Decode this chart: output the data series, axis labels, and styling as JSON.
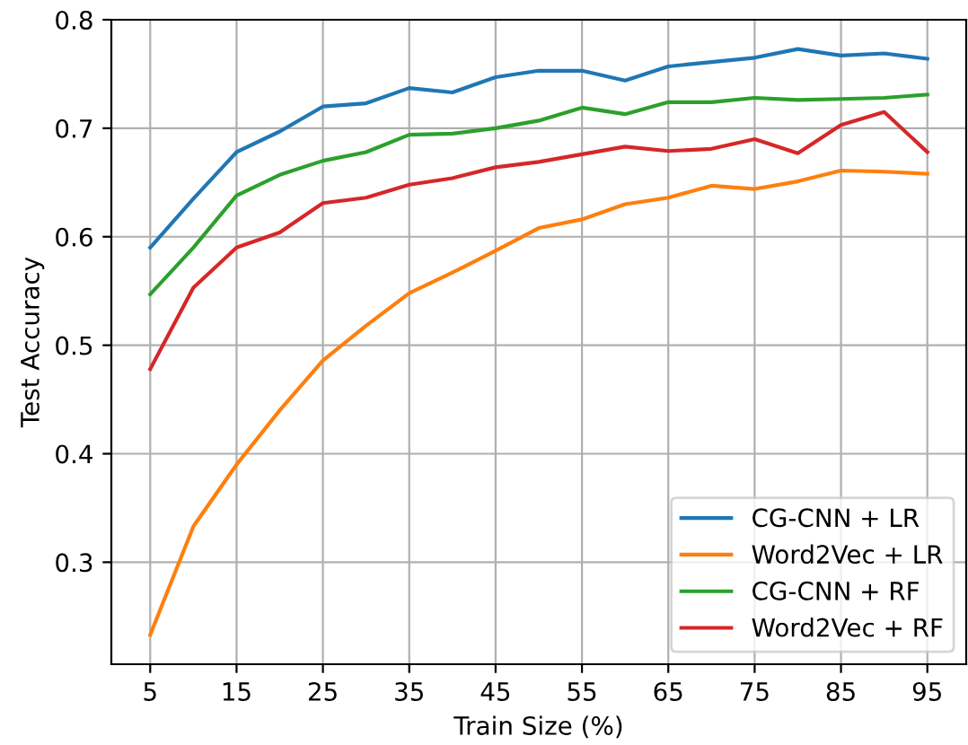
{
  "chart_data": {
    "type": "line",
    "xlabel": "Train Size (%)",
    "ylabel": "Test Accuracy",
    "x": [
      5,
      10,
      15,
      20,
      25,
      30,
      35,
      40,
      45,
      50,
      55,
      60,
      65,
      70,
      75,
      80,
      85,
      90,
      95
    ],
    "xlim": [
      0.5,
      99.5
    ],
    "xticks": [
      5,
      15,
      25,
      35,
      45,
      55,
      65,
      75,
      85,
      95
    ],
    "ylim": [
      0.206,
      0.8
    ],
    "yticks": [
      {
        "value": 0.3,
        "label": "0.3"
      },
      {
        "value": 0.4,
        "label": "0.4"
      },
      {
        "value": 0.5,
        "label": "0.5"
      },
      {
        "value": 0.6,
        "label": "0.6"
      },
      {
        "value": 0.7,
        "label": "0.7"
      },
      {
        "value": 0.8,
        "label": "0.8"
      }
    ],
    "grid": true,
    "legend": "bottom right",
    "marker": "none",
    "line_style": "solid",
    "series": [
      {
        "name": "CG-CNN + LR",
        "color": "#1f77b4",
        "values": [
          0.59,
          0.635,
          0.678,
          0.697,
          0.72,
          0.723,
          0.737,
          0.733,
          0.747,
          0.753,
          0.753,
          0.744,
          0.757,
          0.761,
          0.765,
          0.773,
          0.767,
          0.769,
          0.764
        ]
      },
      {
        "name": "Word2Vec + LR",
        "color": "#ff7f0e",
        "values": [
          0.233,
          0.333,
          0.39,
          0.44,
          0.486,
          0.518,
          0.548,
          0.567,
          0.587,
          0.608,
          0.616,
          0.63,
          0.636,
          0.647,
          0.644,
          0.651,
          0.661,
          0.66,
          0.658
        ]
      },
      {
        "name": "CG-CNN + RF",
        "color": "#2ca02c",
        "values": [
          0.547,
          0.59,
          0.638,
          0.657,
          0.67,
          0.678,
          0.694,
          0.695,
          0.7,
          0.707,
          0.719,
          0.713,
          0.724,
          0.724,
          0.728,
          0.726,
          0.727,
          0.728,
          0.731
        ]
      },
      {
        "name": "Word2Vec + RF",
        "color": "#d62728",
        "values": [
          0.478,
          0.553,
          0.59,
          0.604,
          0.631,
          0.636,
          0.648,
          0.654,
          0.664,
          0.669,
          0.676,
          0.683,
          0.679,
          0.681,
          0.69,
          0.677,
          0.703,
          0.715,
          0.678
        ]
      }
    ]
  }
}
